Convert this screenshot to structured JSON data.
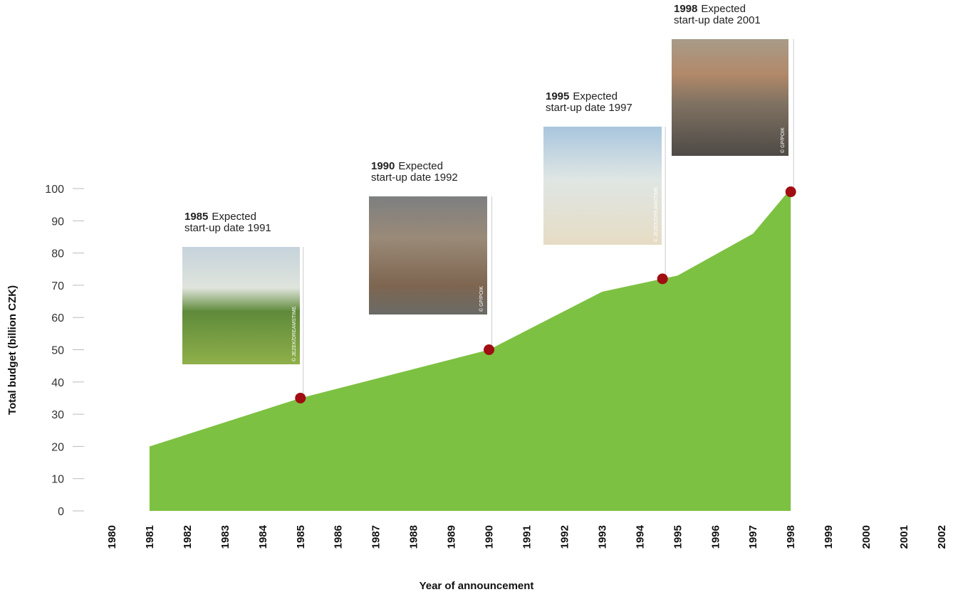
{
  "chart_data": {
    "type": "area",
    "x_label": "Year of announcement",
    "y_label": "Total budget (billion CZK)",
    "xlim": [
      1980,
      2002
    ],
    "xticks": [
      1980,
      1981,
      1982,
      1983,
      1984,
      1985,
      1986,
      1987,
      1988,
      1989,
      1990,
      1991,
      1992,
      1993,
      1994,
      1995,
      1996,
      1997,
      1998,
      1999,
      2000,
      2001,
      2002
    ],
    "ylim": [
      0,
      100
    ],
    "yticks": [
      0,
      10,
      20,
      30,
      40,
      50,
      60,
      70,
      80,
      90,
      100
    ],
    "series": [
      {
        "color": "#7dc142",
        "x": [
          1981,
          1985,
          1990,
          1993,
          1995,
          1997,
          1998
        ],
        "values": [
          20,
          35,
          50,
          68,
          73,
          86,
          100
        ]
      }
    ],
    "points": {
      "color": "#a00d12",
      "x": [
        1985,
        1990,
        1994.6,
        1998
      ],
      "values": [
        35,
        50,
        72,
        99
      ]
    },
    "annotations": [
      {
        "year": "1985",
        "line1": "Expected",
        "line2": "start-up date 1991",
        "credit": "© JEZEK/DREAMSTIME"
      },
      {
        "year": "1990",
        "line1": "Expected",
        "line2": "start-up date 1992",
        "credit": "© GP/POIK"
      },
      {
        "year": "1995",
        "line1": "Expected",
        "line2": "start-up date 1997",
        "credit": "© JEZEK/DREAMSTIME"
      },
      {
        "year": "1998",
        "line1": "Expected",
        "line2": "start-up date 2001",
        "credit": "© GP/POIK"
      }
    ]
  }
}
